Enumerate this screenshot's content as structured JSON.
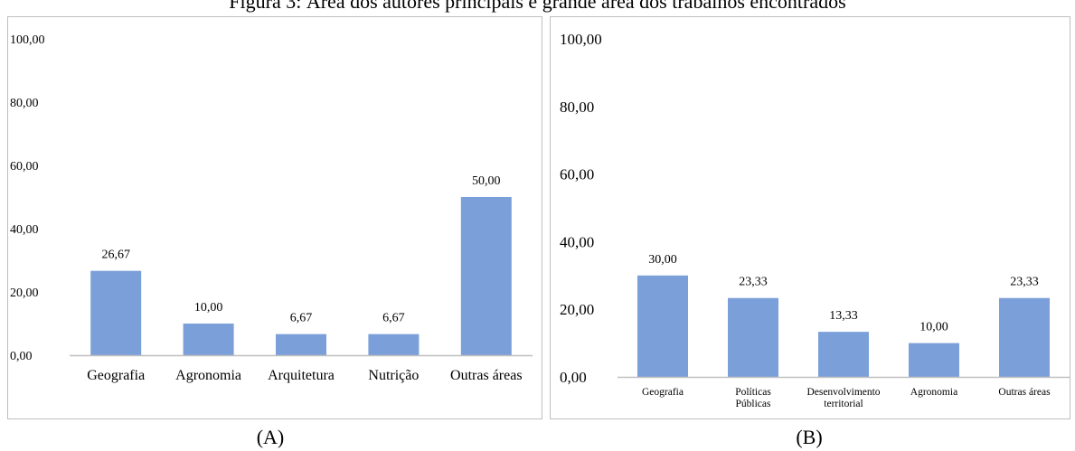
{
  "figure_title": "Figura 3: Área dos autores principais e grande área dos trabalhos encontrados",
  "captions": {
    "a": "(A)",
    "b": "(B)"
  },
  "colors": {
    "bar": "#7b9fd8",
    "axis": "#bfbfbf",
    "border": "#bfbfbf"
  },
  "chart_data": [
    {
      "type": "bar",
      "title": "",
      "xlabel": "",
      "ylabel": "",
      "ylim": [
        0,
        100
      ],
      "yticks": [
        "0,00",
        "20,00",
        "40,00",
        "60,00",
        "80,00",
        "100,00"
      ],
      "categories": [
        [
          "Geografia"
        ],
        [
          "Agronomia"
        ],
        [
          "Arquitetura"
        ],
        [
          "Nutrição"
        ],
        [
          "Outras áreas"
        ]
      ],
      "values": [
        26.67,
        10.0,
        6.67,
        6.67,
        50.0
      ],
      "value_labels": [
        "26,67",
        "10,00",
        "6,67",
        "6,67",
        "50,00"
      ],
      "grid": false
    },
    {
      "type": "bar",
      "title": "",
      "xlabel": "",
      "ylabel": "",
      "ylim": [
        0,
        100
      ],
      "yticks": [
        "0,00",
        "20,00",
        "40,00",
        "60,00",
        "80,00",
        "100,00"
      ],
      "categories": [
        [
          "Geografia"
        ],
        [
          "Políticas",
          "Públicas"
        ],
        [
          "Desenvolvimento",
          "territorial"
        ],
        [
          "Agronomia"
        ],
        [
          "Outras áreas"
        ]
      ],
      "values": [
        30.0,
        23.33,
        13.33,
        10.0,
        23.33
      ],
      "value_labels": [
        "30,00",
        "23,33",
        "13,33",
        "10,00",
        "23,33"
      ],
      "grid": false
    }
  ]
}
